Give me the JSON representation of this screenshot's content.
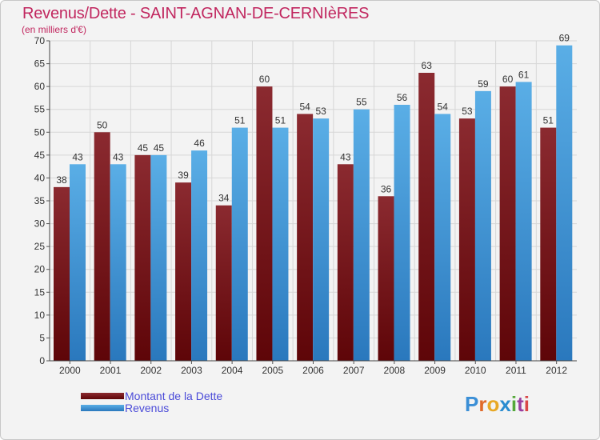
{
  "chart_data": {
    "type": "bar",
    "title": "Revenus/Dette - SAINT-AGNAN-DE-CERNIèRES",
    "subtitle": "(en milliers d'€)",
    "categories": [
      "2000",
      "2001",
      "2002",
      "2003",
      "2004",
      "2005",
      "2006",
      "2007",
      "2008",
      "2009",
      "2010",
      "2011",
      "2012"
    ],
    "series": [
      {
        "name": "Montant de la Dette",
        "color": "#7a1418",
        "values": [
          38,
          50,
          45,
          39,
          34,
          60,
          54,
          43,
          36,
          63,
          53,
          60,
          51
        ]
      },
      {
        "name": "Revenus",
        "color": "#3d9ad8",
        "values": [
          43,
          43,
          45,
          46,
          51,
          51,
          53,
          55,
          56,
          54,
          59,
          61,
          69
        ]
      }
    ],
    "ylim": [
      0,
      70
    ],
    "yticks": [
      0,
      5,
      10,
      15,
      20,
      25,
      30,
      35,
      40,
      45,
      50,
      55,
      60,
      65,
      70
    ],
    "grid": true,
    "legend_position": "bottom-left"
  },
  "logo": {
    "letters": [
      "P",
      "r",
      "o",
      "x",
      "i",
      "t",
      "i"
    ],
    "colors": [
      "#3b8fd6",
      "#e06a2a",
      "#e8a825",
      "#2a8cd0",
      "#55a83a",
      "#9a3fa0",
      "#d94848"
    ]
  }
}
